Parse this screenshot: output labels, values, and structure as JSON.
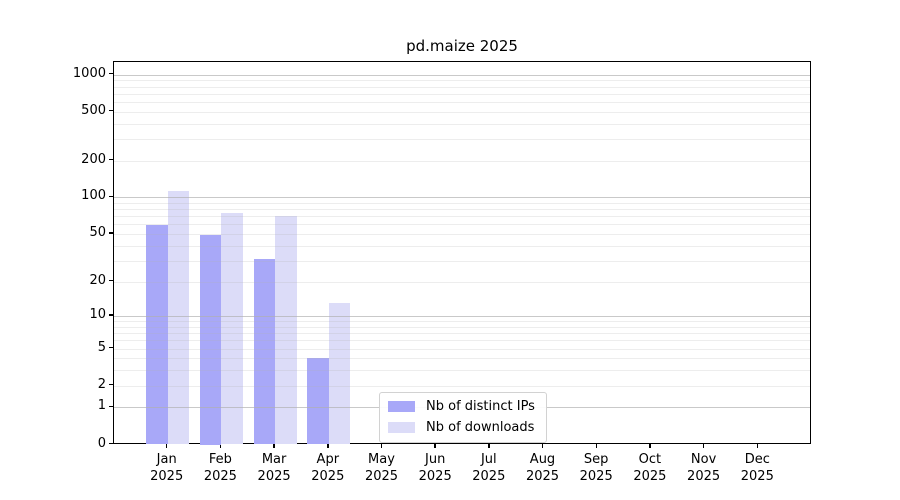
{
  "chart_data": {
    "type": "bar",
    "title": "pd.maize 2025",
    "yscale": "log1p",
    "ylim": [
      0,
      1265
    ],
    "yticks": [
      0,
      1,
      2,
      5,
      10,
      20,
      50,
      100,
      200,
      500,
      1000
    ],
    "grid": {
      "major": [
        1,
        10,
        100,
        1000
      ],
      "minor": [
        2,
        3,
        4,
        5,
        6,
        7,
        8,
        9,
        20,
        30,
        40,
        50,
        60,
        70,
        80,
        90,
        200,
        300,
        400,
        500,
        600,
        700,
        800,
        900
      ]
    },
    "categories": [
      {
        "line1": "Jan",
        "line2": "2025"
      },
      {
        "line1": "Feb",
        "line2": "2025"
      },
      {
        "line1": "Mar",
        "line2": "2025"
      },
      {
        "line1": "Apr",
        "line2": "2025"
      },
      {
        "line1": "May",
        "line2": "2025"
      },
      {
        "line1": "Jun",
        "line2": "2025"
      },
      {
        "line1": "Jul",
        "line2": "2025"
      },
      {
        "line1": "Aug",
        "line2": "2025"
      },
      {
        "line1": "Sep",
        "line2": "2025"
      },
      {
        "line1": "Oct",
        "line2": "2025"
      },
      {
        "line1": "Nov",
        "line2": "2025"
      },
      {
        "line1": "Dec",
        "line2": "2025"
      }
    ],
    "series": [
      {
        "name": "Nb of distinct IPs",
        "color": "#a8a8f8",
        "values": [
          59,
          49,
          31,
          4,
          null,
          null,
          null,
          null,
          null,
          null,
          null,
          null
        ]
      },
      {
        "name": "Nb of downloads",
        "color": "#dcdcf8",
        "values": [
          112,
          75,
          70,
          13,
          null,
          null,
          null,
          null,
          null,
          null,
          null,
          null
        ]
      }
    ],
    "legend_position": "lower center"
  }
}
